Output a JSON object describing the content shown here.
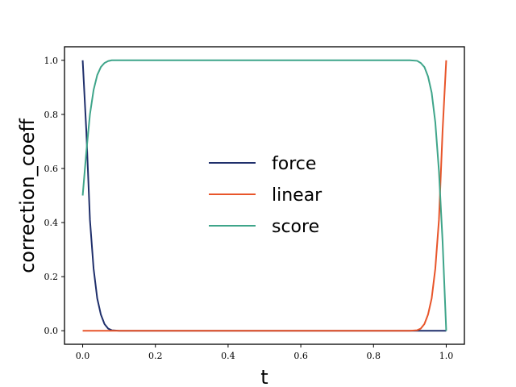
{
  "chart_data": {
    "type": "line",
    "title": "",
    "xlabel": "t",
    "ylabel": "correction_coeff",
    "xlim": [
      -0.05,
      1.05
    ],
    "ylim": [
      -0.05,
      1.05
    ],
    "xticks": [
      "0.0",
      "0.2",
      "0.4",
      "0.6",
      "0.8",
      "1.0"
    ],
    "yticks": [
      "0.0",
      "0.2",
      "0.4",
      "0.6",
      "0.8",
      "1.0"
    ],
    "grid": false,
    "legend": "center",
    "series": [
      {
        "name": "force",
        "color": "#1f2f6b",
        "x": [
          0.0,
          0.01,
          0.02,
          0.03,
          0.04,
          0.05,
          0.06,
          0.07,
          0.08,
          0.1,
          0.3,
          0.5,
          0.7,
          0.9,
          0.96,
          0.98,
          1.0
        ],
        "y": [
          1.0,
          0.74,
          0.41,
          0.23,
          0.12,
          0.06,
          0.025,
          0.008,
          0.002,
          0.0,
          0.0,
          0.0,
          0.0,
          0.0,
          0.0,
          0.0,
          0.0
        ]
      },
      {
        "name": "linear",
        "color": "#e8552a",
        "x": [
          0.0,
          0.1,
          0.3,
          0.5,
          0.7,
          0.9,
          0.92,
          0.93,
          0.94,
          0.95,
          0.96,
          0.97,
          0.98,
          0.99,
          1.0
        ],
        "y": [
          0.0,
          0.0,
          0.0,
          0.0,
          0.0,
          0.0,
          0.002,
          0.008,
          0.025,
          0.06,
          0.12,
          0.23,
          0.41,
          0.74,
          1.0
        ]
      },
      {
        "name": "score",
        "color": "#3fa58a",
        "x": [
          0.0,
          0.01,
          0.02,
          0.03,
          0.04,
          0.05,
          0.06,
          0.07,
          0.08,
          0.1,
          0.3,
          0.5,
          0.7,
          0.9,
          0.92,
          0.93,
          0.94,
          0.95,
          0.96,
          0.97,
          0.98,
          0.99,
          1.0
        ],
        "y": [
          0.5,
          0.66,
          0.8,
          0.89,
          0.945,
          0.975,
          0.99,
          0.997,
          1.0,
          1.0,
          1.0,
          1.0,
          1.0,
          1.0,
          0.998,
          0.99,
          0.975,
          0.94,
          0.88,
          0.77,
          0.59,
          0.33,
          0.0
        ]
      }
    ]
  }
}
